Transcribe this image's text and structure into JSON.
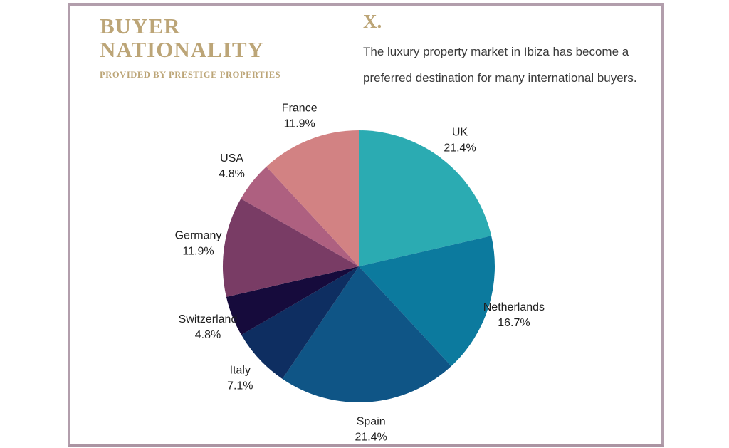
{
  "header": {
    "title": "BUYER NATIONALITY",
    "subtitle": "PROVIDED BY PRESTIGE PROPERTIES",
    "section_marker": "X.",
    "description": "The luxury property market in Ibiza has become a preferred destination for many international buyers."
  },
  "colors": {
    "card_border": "#b29eac",
    "accent_gold": "#bca577",
    "body_text": "#3a3a3a",
    "label_text": "#1e1e1e"
  },
  "chart_data": {
    "type": "pie",
    "title": "Buyer Nationality",
    "unit": "%",
    "start_angle_deg": 0,
    "direction": "clockwise",
    "legend": "none",
    "label_style": "name and percent outside slice",
    "slices": [
      {
        "label": "UK",
        "value": 21.4,
        "color": "#2babb2"
      },
      {
        "label": "Netherlands",
        "value": 16.7,
        "color": "#0c7a9e"
      },
      {
        "label": "Spain",
        "value": 21.4,
        "color": "#0f5586"
      },
      {
        "label": "Italy",
        "value": 7.1,
        "color": "#0e2e61"
      },
      {
        "label": "Switzerland",
        "value": 4.8,
        "color": "#160b3c"
      },
      {
        "label": "Germany",
        "value": 11.9,
        "color": "#793c65"
      },
      {
        "label": "USA",
        "value": 4.8,
        "color": "#ae6080"
      },
      {
        "label": "France",
        "value": 11.9,
        "color": "#d28283"
      }
    ]
  }
}
